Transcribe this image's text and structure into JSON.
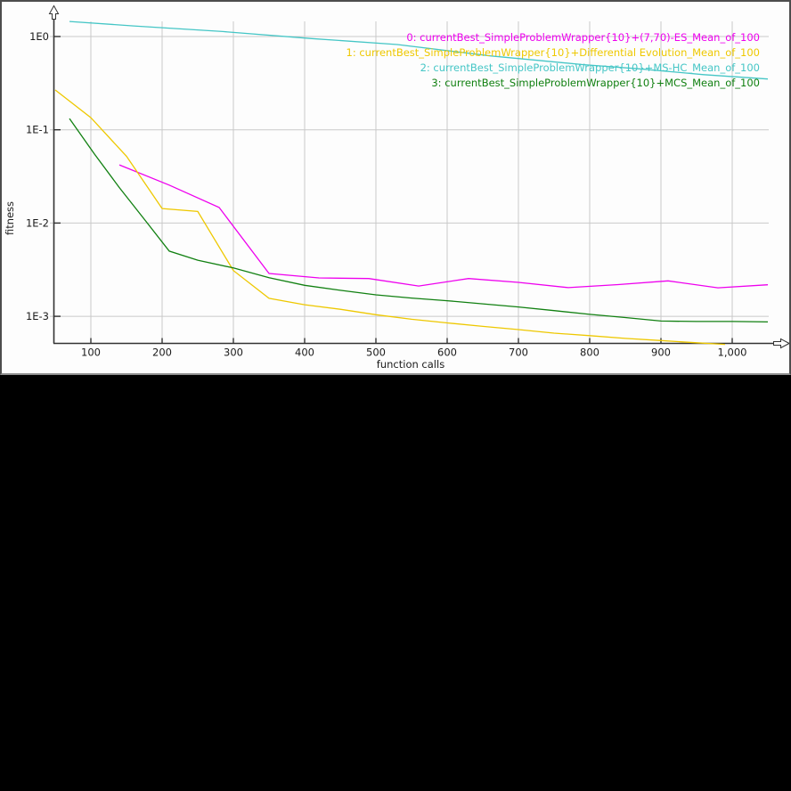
{
  "colors": {
    "page_bg": "#000000",
    "panel_bg": "#fdfdfd",
    "grid": "#c9c9c9",
    "axis": "#333333"
  },
  "chart_data": {
    "type": "line",
    "title": "",
    "xlabel": "function calls",
    "ylabel": "fitness",
    "x_scale": "linear",
    "y_scale": "log",
    "xlim": [
      48,
      1080
    ],
    "ylim": [
      0.0005,
      1.6
    ],
    "grid": true,
    "legend_position": "top-right",
    "x_ticks": [
      {
        "value": 100,
        "label": "100"
      },
      {
        "value": 200,
        "label": "200"
      },
      {
        "value": 300,
        "label": "300"
      },
      {
        "value": 400,
        "label": "400"
      },
      {
        "value": 500,
        "label": "500"
      },
      {
        "value": 600,
        "label": "600"
      },
      {
        "value": 700,
        "label": "700"
      },
      {
        "value": 800,
        "label": "800"
      },
      {
        "value": 900,
        "label": "900"
      },
      {
        "value": 1000,
        "label": "1,000"
      }
    ],
    "y_ticks": [
      {
        "value": 1,
        "label": "1E0"
      },
      {
        "value": 0.1,
        "label": "1E-1"
      },
      {
        "value": 0.01,
        "label": "1E-2"
      },
      {
        "value": 0.001,
        "label": "1E-3"
      }
    ],
    "series": [
      {
        "name": "(7,70)-ES",
        "label": "0: currentBest_SimpleProblemWrapper{10}+(7,70)-ES_Mean_of_100",
        "color": "#ee00ee",
        "points": [
          [
            140,
            0.042
          ],
          [
            210,
            0.0255
          ],
          [
            280,
            0.0147
          ],
          [
            350,
            0.00288
          ],
          [
            420,
            0.00258
          ],
          [
            490,
            0.00254
          ],
          [
            560,
            0.00211
          ],
          [
            630,
            0.00254
          ],
          [
            700,
            0.00231
          ],
          [
            770,
            0.00203
          ],
          [
            840,
            0.00219
          ],
          [
            910,
            0.0024
          ],
          [
            980,
            0.00202
          ],
          [
            1050,
            0.00218
          ]
        ]
      },
      {
        "name": "Differential Evolution",
        "label": "1: currentBest_SimpleProblemWrapper{10}+Differential Evolution_Mean_of_100",
        "color": "#eec800",
        "points": [
          [
            50,
            0.267
          ],
          [
            100,
            0.135
          ],
          [
            150,
            0.052
          ],
          [
            200,
            0.0143
          ],
          [
            250,
            0.0133
          ],
          [
            300,
            0.0031
          ],
          [
            350,
            0.00156
          ],
          [
            400,
            0.00133
          ],
          [
            450,
            0.00119
          ],
          [
            500,
            0.00104
          ],
          [
            550,
            0.00093
          ],
          [
            600,
            0.00085
          ],
          [
            650,
            0.00078
          ],
          [
            700,
            0.00072
          ],
          [
            750,
            0.00066
          ],
          [
            800,
            0.00062
          ],
          [
            850,
            0.00058
          ],
          [
            900,
            0.00055
          ],
          [
            950,
            0.00052
          ],
          [
            990,
            0.0005
          ]
        ]
      },
      {
        "name": "MS-HC",
        "label": "2: currentBest_SimpleProblemWrapper{10}+MS-HC_Mean_of_100",
        "color": "#45c6c6",
        "points": [
          [
            70,
            1.45
          ],
          [
            160,
            1.3
          ],
          [
            285,
            1.13
          ],
          [
            410,
            0.95
          ],
          [
            530,
            0.82
          ],
          [
            660,
            0.62
          ],
          [
            790,
            0.5
          ],
          [
            870,
            0.45
          ],
          [
            960,
            0.39
          ],
          [
            1050,
            0.35
          ]
        ]
      },
      {
        "name": "MCS",
        "label": "3: currentBest_SimpleProblemWrapper{10}+MCS_Mean_of_100",
        "color": "#118011",
        "points": [
          [
            70,
            0.132
          ],
          [
            105,
            0.055
          ],
          [
            140,
            0.024
          ],
          [
            175,
            0.011
          ],
          [
            210,
            0.005
          ],
          [
            250,
            0.004
          ],
          [
            300,
            0.0033
          ],
          [
            350,
            0.0026
          ],
          [
            400,
            0.00215
          ],
          [
            450,
            0.0019
          ],
          [
            500,
            0.0017
          ],
          [
            550,
            0.00157
          ],
          [
            600,
            0.00147
          ],
          [
            650,
            0.00136
          ],
          [
            700,
            0.00126
          ],
          [
            750,
            0.00115
          ],
          [
            800,
            0.00105
          ],
          [
            850,
            0.00097
          ],
          [
            900,
            0.00089
          ],
          [
            950,
            0.00088
          ],
          [
            1000,
            0.00088
          ],
          [
            1050,
            0.00087
          ]
        ]
      }
    ]
  }
}
